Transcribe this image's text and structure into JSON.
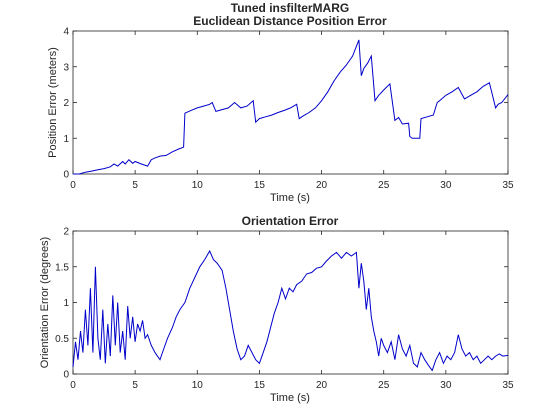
{
  "figure": {
    "suptitle": "Tuned insfilterMARG"
  },
  "colors": {
    "series": "#0000cc",
    "axes": "#262626",
    "background": "#ffffff"
  },
  "chart_data": [
    {
      "type": "line",
      "title": "Euclidean Distance Position Error",
      "xlabel": "Time (s)",
      "ylabel": "Position Error (meters)",
      "xlim": [
        0,
        35
      ],
      "ylim": [
        0,
        4
      ],
      "xticks": [
        "0",
        "5",
        "10",
        "15",
        "20",
        "25",
        "30",
        "35"
      ],
      "yticks": [
        "0",
        "1",
        "2",
        "3",
        "4"
      ],
      "grid": false,
      "series": [
        {
          "x": [
            0,
            0.5,
            1,
            1.5,
            2,
            2.5,
            3,
            3.3,
            3.6,
            4,
            4.2,
            4.5,
            4.8,
            5,
            5.5,
            6,
            6.3,
            6.6,
            7,
            7.5,
            8,
            8.5,
            8.9,
            9.0,
            9.5,
            10,
            10.5,
            11,
            11.2,
            11.5,
            12,
            12.5,
            13,
            13.5,
            14,
            14.5,
            14.7,
            15,
            15.5,
            16,
            16.5,
            17,
            17.5,
            18,
            18.2,
            18.5,
            19,
            19.5,
            20,
            20.5,
            21,
            21.5,
            22,
            22.5,
            23,
            23.2,
            23.4,
            23.7,
            24,
            24.3,
            24.6,
            25,
            25.5,
            25.9,
            26.2,
            26.5,
            27,
            27.1,
            27.3,
            27.6,
            27.9,
            28.0,
            28.5,
            29,
            29.3,
            29.5,
            30,
            30.5,
            31,
            31.5,
            32,
            32.5,
            33,
            33.5,
            34,
            34.2,
            34.5,
            35
          ],
          "y": [
            0,
            0,
            0.05,
            0.08,
            0.12,
            0.15,
            0.2,
            0.28,
            0.22,
            0.35,
            0.28,
            0.4,
            0.3,
            0.35,
            0.28,
            0.22,
            0.4,
            0.45,
            0.5,
            0.52,
            0.62,
            0.7,
            0.75,
            1.7,
            1.78,
            1.85,
            1.9,
            1.95,
            2.0,
            1.75,
            1.8,
            1.85,
            2.0,
            1.85,
            1.9,
            2.05,
            1.45,
            1.55,
            1.6,
            1.65,
            1.72,
            1.78,
            1.85,
            1.95,
            1.55,
            1.62,
            1.72,
            1.85,
            2.05,
            2.3,
            2.6,
            2.85,
            3.05,
            3.3,
            3.75,
            2.75,
            2.95,
            3.1,
            3.3,
            2.05,
            2.2,
            2.35,
            2.52,
            1.5,
            1.58,
            1.4,
            1.42,
            1.05,
            1.0,
            1.0,
            1.0,
            1.55,
            1.6,
            1.65,
            2.0,
            2.05,
            2.2,
            2.3,
            2.42,
            2.1,
            2.2,
            2.3,
            2.45,
            2.55,
            1.85,
            1.95,
            2.0,
            2.22
          ]
        }
      ]
    },
    {
      "type": "line",
      "title": "Orientation Error",
      "xlabel": "Time (s)",
      "ylabel": "Orientation Error (degrees)",
      "xlim": [
        0,
        35
      ],
      "ylim": [
        0,
        2
      ],
      "xticks": [
        "0",
        "5",
        "10",
        "15",
        "20",
        "25",
        "30",
        "35"
      ],
      "yticks": [
        "0",
        "0.5",
        "1",
        "1.5",
        "2"
      ],
      "grid": false,
      "series": [
        {
          "x": [
            0,
            0.2,
            0.4,
            0.6,
            0.8,
            1.0,
            1.2,
            1.4,
            1.6,
            1.8,
            2.0,
            2.2,
            2.4,
            2.6,
            2.8,
            3.0,
            3.2,
            3.4,
            3.6,
            3.8,
            4.0,
            4.2,
            4.4,
            4.6,
            4.8,
            5.0,
            5.2,
            5.4,
            5.6,
            5.8,
            6.0,
            6.3,
            6.6,
            7.0,
            7.3,
            7.6,
            8.0,
            8.3,
            8.6,
            9.0,
            9.4,
            9.8,
            10.2,
            10.6,
            11.0,
            11.3,
            11.6,
            12.0,
            12.3,
            12.6,
            12.9,
            13.2,
            13.5,
            13.8,
            14.1,
            14.4,
            14.7,
            15.0,
            15.3,
            15.6,
            15.9,
            16.2,
            16.5,
            16.8,
            17.1,
            17.4,
            17.7,
            18.0,
            18.4,
            18.8,
            19.2,
            19.6,
            20.0,
            20.4,
            20.8,
            21.2,
            21.6,
            22.0,
            22.4,
            22.8,
            23.0,
            23.2,
            23.4,
            23.6,
            23.8,
            24.0,
            24.2,
            24.4,
            24.6,
            24.8,
            25.0,
            25.3,
            25.6,
            25.9,
            26.2,
            26.5,
            26.8,
            27.1,
            27.4,
            27.7,
            28.0,
            28.3,
            28.6,
            28.9,
            29.2,
            29.5,
            29.8,
            30.1,
            30.4,
            30.7,
            31.0,
            31.3,
            31.6,
            31.9,
            32.2,
            32.5,
            32.8,
            33.1,
            33.4,
            33.7,
            34.0,
            34.3,
            34.6,
            35.0
          ],
          "y": [
            0.1,
            0.45,
            0.2,
            0.6,
            0.3,
            0.9,
            0.4,
            1.2,
            0.3,
            1.5,
            0.5,
            0.2,
            0.9,
            0.15,
            0.7,
            0.25,
            1.1,
            0.4,
            1.0,
            0.3,
            0.6,
            0.2,
            0.95,
            0.5,
            0.8,
            0.45,
            0.7,
            0.6,
            0.75,
            0.5,
            0.55,
            0.4,
            0.3,
            0.2,
            0.35,
            0.5,
            0.65,
            0.8,
            0.9,
            1.0,
            1.2,
            1.35,
            1.5,
            1.6,
            1.72,
            1.6,
            1.55,
            1.45,
            1.2,
            0.9,
            0.6,
            0.35,
            0.2,
            0.25,
            0.4,
            0.3,
            0.2,
            0.15,
            0.3,
            0.45,
            0.65,
            0.85,
            1.0,
            1.2,
            1.05,
            1.2,
            1.15,
            1.25,
            1.3,
            1.4,
            1.42,
            1.48,
            1.5,
            1.58,
            1.65,
            1.7,
            1.62,
            1.7,
            1.65,
            1.7,
            1.2,
            1.55,
            1.3,
            0.9,
            1.2,
            0.8,
            0.6,
            0.45,
            0.25,
            0.5,
            0.4,
            0.3,
            0.45,
            0.2,
            0.55,
            0.35,
            0.25,
            0.4,
            0.15,
            0.1,
            0.3,
            0.2,
            0.12,
            0.05,
            0.2,
            0.3,
            0.15,
            0.25,
            0.2,
            0.3,
            0.55,
            0.35,
            0.25,
            0.3,
            0.2,
            0.25,
            0.15,
            0.2,
            0.25,
            0.2,
            0.25,
            0.28,
            0.25,
            0.26
          ]
        }
      ]
    }
  ]
}
